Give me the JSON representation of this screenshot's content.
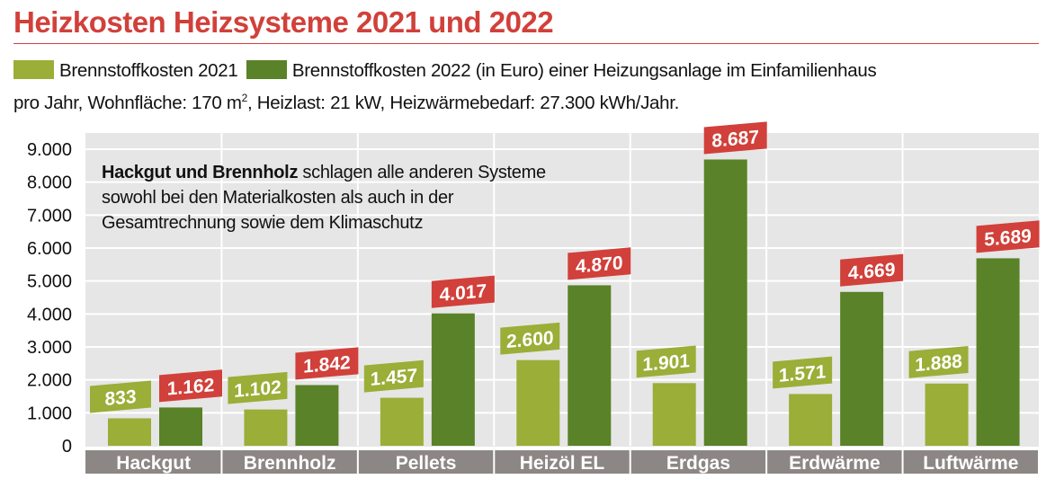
{
  "chart_data": {
    "type": "bar",
    "title": "Heizkosten Heizsysteme 2021 und 2022",
    "categories": [
      "Hackgut",
      "Brennholz",
      "Pellets",
      "Heizöl EL",
      "Erdgas",
      "Erdwärme",
      "Luftwärme"
    ],
    "series": [
      {
        "name": "Brennstoffkosten 2021",
        "color": "#9aae38",
        "values": [
          833,
          1102,
          1457,
          2600,
          1901,
          1571,
          1888
        ],
        "labels": [
          "833",
          "1.102",
          "1.457",
          "2.600",
          "1.901",
          "1.571",
          "1.888"
        ]
      },
      {
        "name": "Brennstoffkosten 2022 (in Euro) einer Heizungsanlage im Einfamilienhaus",
        "color": "#5a8228",
        "label_color": "#d1403a",
        "values": [
          1162,
          1842,
          4017,
          4870,
          8687,
          4669,
          5689
        ],
        "labels": [
          "1.162",
          "1.842",
          "4.017",
          "4.870",
          "8.687",
          "4.669",
          "5.689"
        ]
      }
    ],
    "ylim": [
      0,
      9000
    ],
    "yticks": [
      0,
      1000,
      2000,
      3000,
      4000,
      5000,
      6000,
      7000,
      8000,
      9000
    ],
    "ytick_labels": [
      "0",
      "1.000",
      "2.000",
      "3.000",
      "4.000",
      "5.000",
      "6.000",
      "7.000",
      "8.000",
      "9.000"
    ],
    "grid": true,
    "legend_placement": "top",
    "subtitle_line2_pre": "pro Jahr, Wohnfläche: 170 m",
    "subtitle_sup": "2",
    "subtitle_line2_post": ", Heizlast: 21 kW, Heizwärmebedarf: 27.300 kWh/Jahr.",
    "annotation_bold": "Hackgut und Brennholz",
    "annotation_text": " schlagen alle anderen Systeme sowohl bei den Materialkosten als auch in der Gesamtrechnung sowie dem Klimaschutz"
  }
}
